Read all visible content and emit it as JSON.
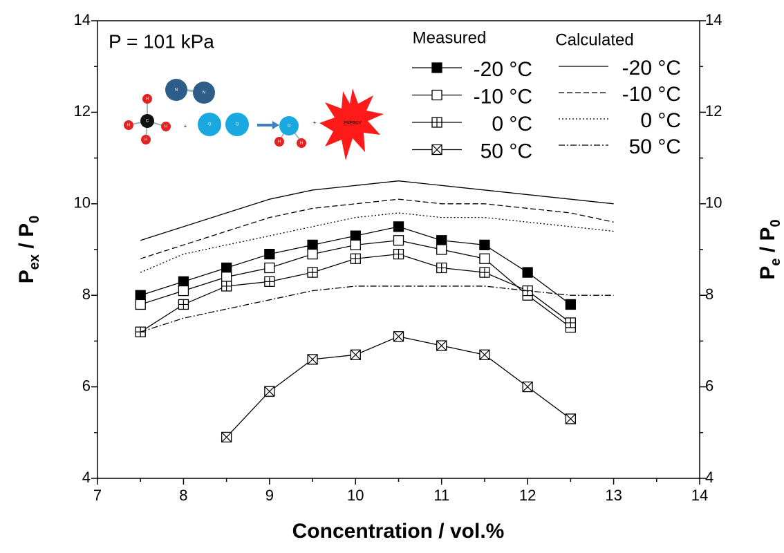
{
  "chart_data": {
    "type": "line",
    "annotation": "P = 101 kPa",
    "xlabel": "Concentration / vol.%",
    "ylabel_parts": [
      "P",
      "ex",
      " / P",
      "0"
    ],
    "y2label_parts": [
      "P",
      "e",
      " / P",
      "0"
    ],
    "xlim": [
      7,
      14
    ],
    "xticks": [
      7,
      8,
      9,
      10,
      11,
      12,
      13,
      14
    ],
    "xminorticks": [
      7.5,
      8.5,
      9.5,
      10.5,
      11.5,
      12.5,
      13.5
    ],
    "ylim": [
      4,
      14
    ],
    "yticks": [
      4,
      6,
      8,
      10,
      12,
      14
    ],
    "yminorticks": [
      5,
      7,
      9,
      11,
      13
    ],
    "y2lim": [
      4,
      14
    ],
    "y2ticks": [
      4,
      6,
      8,
      10,
      12,
      14
    ],
    "legend_titles": [
      "Measured",
      "Calculated"
    ],
    "series": [
      {
        "name": "-20 °C",
        "group": 0,
        "marker": "filled",
        "dash": "solid",
        "color": "#000000",
        "x": [
          7.5,
          8,
          8.5,
          9,
          9.5,
          10,
          10.5,
          11,
          11.5,
          12,
          12.5
        ],
        "values": [
          8.0,
          8.3,
          8.6,
          8.9,
          9.1,
          9.3,
          9.5,
          9.2,
          9.1,
          8.5,
          7.8
        ]
      },
      {
        "name": "-10 °C",
        "group": 0,
        "marker": "open",
        "dash": "solid",
        "color": "#000000",
        "x": [
          7.5,
          8,
          8.5,
          9,
          9.5,
          10,
          10.5,
          11,
          11.5,
          12,
          12.5
        ],
        "values": [
          7.8,
          8.1,
          8.4,
          8.6,
          8.9,
          9.1,
          9.2,
          9.0,
          8.8,
          8.0,
          7.3
        ]
      },
      {
        "name": "0 °C",
        "group": 0,
        "marker": "plus",
        "dash": "solid",
        "color": "#000000",
        "x": [
          7.5,
          8,
          8.5,
          9,
          9.5,
          10,
          10.5,
          11,
          11.5,
          12,
          12.5
        ],
        "values": [
          7.2,
          7.8,
          8.2,
          8.3,
          8.5,
          8.8,
          8.9,
          8.6,
          8.5,
          8.1,
          7.4
        ]
      },
      {
        "name": "50 °C",
        "group": 0,
        "marker": "cross",
        "dash": "solid",
        "color": "#000000",
        "x": [
          8.5,
          9,
          9.5,
          10,
          10.5,
          11,
          11.5,
          12,
          12.5
        ],
        "values": [
          4.9,
          5.9,
          6.6,
          6.7,
          7.1,
          6.9,
          6.7,
          6.0,
          5.3
        ]
      },
      {
        "name": "-20 °C",
        "group": 1,
        "marker": "none",
        "dash": "solid",
        "color": "#000000",
        "x": [
          7.5,
          8,
          8.5,
          9,
          9.5,
          10,
          10.5,
          11,
          11.5,
          12,
          12.5,
          13
        ],
        "values": [
          9.2,
          9.5,
          9.8,
          10.1,
          10.3,
          10.4,
          10.5,
          10.4,
          10.3,
          10.2,
          10.1,
          10.0
        ]
      },
      {
        "name": "-10 °C",
        "group": 1,
        "marker": "none",
        "dash": "dashed",
        "color": "#000000",
        "x": [
          7.5,
          8,
          8.5,
          9,
          9.5,
          10,
          10.5,
          11,
          11.5,
          12,
          12.5,
          13
        ],
        "values": [
          8.8,
          9.1,
          9.4,
          9.7,
          9.9,
          10.0,
          10.1,
          10.0,
          10.0,
          9.9,
          9.8,
          9.6
        ]
      },
      {
        "name": "0 °C",
        "group": 1,
        "marker": "none",
        "dash": "dotted",
        "color": "#000000",
        "x": [
          7.5,
          8,
          8.5,
          9,
          9.5,
          10,
          10.5,
          11,
          11.5,
          12,
          12.5,
          13
        ],
        "values": [
          8.5,
          8.9,
          9.1,
          9.3,
          9.5,
          9.7,
          9.8,
          9.7,
          9.7,
          9.6,
          9.5,
          9.4
        ]
      },
      {
        "name": "50 °C",
        "group": 1,
        "marker": "none",
        "dash": "dashdot",
        "color": "#000000",
        "x": [
          7.5,
          8,
          8.5,
          9,
          9.5,
          10,
          10.5,
          11,
          11.5,
          12,
          12.5,
          13
        ],
        "values": [
          7.2,
          7.5,
          7.7,
          7.9,
          8.1,
          8.2,
          8.2,
          8.2,
          8.2,
          8.1,
          8.0,
          8.0
        ]
      }
    ]
  },
  "illustration": {
    "labels": [
      "C",
      "H",
      "N",
      "O",
      "ENERGY"
    ]
  }
}
